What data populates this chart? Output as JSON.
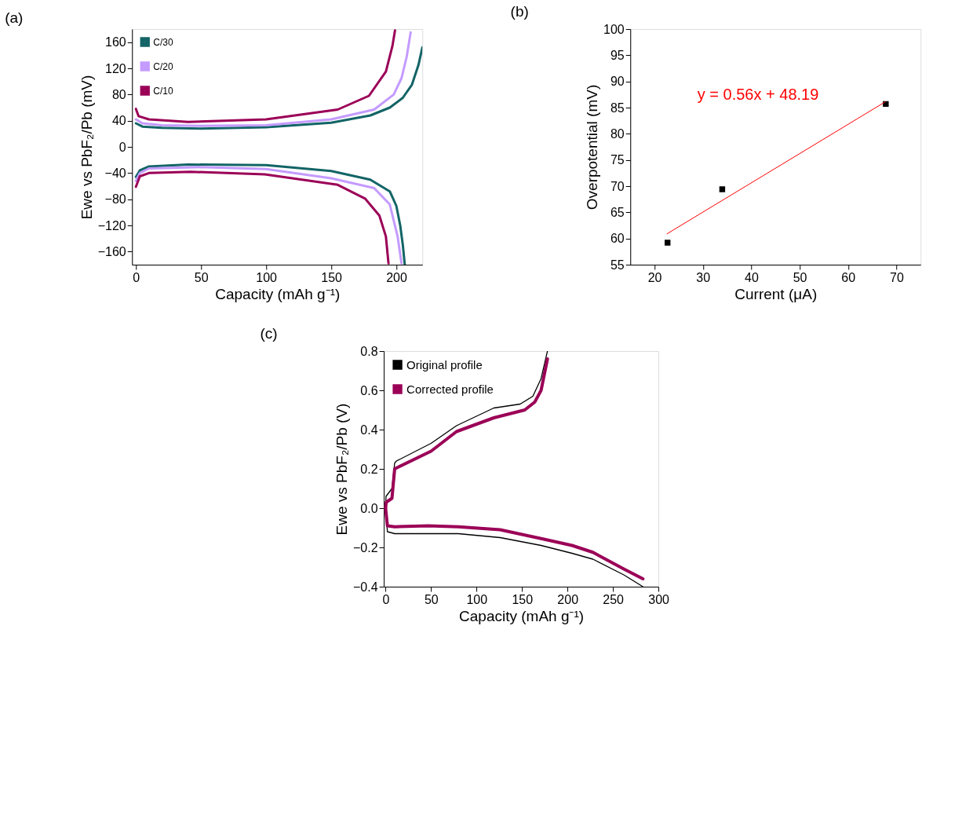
{
  "chart_data": [
    {
      "type": "line",
      "title": "(a)",
      "xlabel": "Capacity (mAh g⁻¹)",
      "ylabel": "Ewe vs PbF₂/Pb (mV)",
      "xlim": [
        -3,
        220
      ],
      "ylim": [
        -180,
        180
      ],
      "xticks": [
        0,
        50,
        100,
        150,
        200
      ],
      "yticks": [
        -160,
        -120,
        -80,
        -40,
        0,
        40,
        80,
        120,
        160
      ],
      "grid": false,
      "legend": "top left",
      "series": [
        {
          "name": "C/30",
          "color": "#136466",
          "x": [
            0,
            5,
            20,
            50,
            100,
            150,
            180,
            195,
            205,
            212,
            217,
            220,
            null,
            0,
            3,
            10,
            40,
            100,
            150,
            180,
            195,
            200,
            203,
            205,
            206.5
          ],
          "values": [
            36,
            31,
            29,
            28,
            30,
            37,
            48,
            60,
            75,
            95,
            125,
            152,
            null,
            -46,
            -36,
            -30,
            -27,
            -28,
            -37,
            -50,
            -68,
            -90,
            -120,
            -150,
            -180
          ]
        },
        {
          "name": "C/20",
          "color": "#c49bff",
          "x": [
            0,
            5,
            20,
            50,
            100,
            150,
            183,
            198,
            204,
            208,
            211,
            null,
            0,
            3,
            10,
            50,
            100,
            150,
            183,
            195,
            201,
            204
          ],
          "values": [
            42,
            36,
            33,
            32,
            33,
            42,
            57,
            80,
            105,
            138,
            175,
            null,
            -52,
            -40,
            -33,
            -31,
            -34,
            -48,
            -63,
            -88,
            -137,
            -178
          ]
        },
        {
          "name": "C/10",
          "color": "#9b0057",
          "x": [
            0,
            2,
            10,
            40,
            100,
            155,
            179,
            192,
            197,
            199,
            null,
            0,
            3,
            10,
            42,
            99,
            155,
            176,
            187,
            192,
            194
          ],
          "values": [
            58,
            47,
            42,
            38,
            42,
            57,
            78,
            115,
            154,
            178,
            null,
            -61,
            -45,
            -40,
            -38,
            -42,
            -58,
            -79,
            -105,
            -137,
            -178
          ]
        }
      ]
    },
    {
      "type": "scatter",
      "title": "(b)",
      "xlabel": "Current (μA)",
      "ylabel": "Overpotential (mV)",
      "xlim": [
        15,
        75
      ],
      "ylim": [
        55,
        100
      ],
      "xticks": [
        20,
        30,
        40,
        50,
        60,
        70
      ],
      "yticks": [
        55,
        60,
        65,
        70,
        75,
        80,
        85,
        90,
        95,
        100
      ],
      "grid": false,
      "legend": false,
      "marker": "square",
      "series": [
        {
          "type": "scatter",
          "color": "#000000",
          "x": [
            22.7,
            34,
            67.8
          ],
          "values": [
            59.2,
            69.4,
            85.7
          ]
        },
        {
          "type": "line",
          "marker": "none",
          "color": "#ff0000",
          "x": [
            22.6,
            67.7
          ],
          "values": [
            60.9,
            86.1
          ]
        }
      ],
      "annotations": [
        "y = 0.56x + 48.19"
      ]
    },
    {
      "type": "line",
      "title": "(c)",
      "xlabel": "Capacity (mAh g⁻¹)",
      "ylabel": "Ewe vs PbF₂/Pb (V)",
      "xlim": [
        -2,
        300
      ],
      "ylim": [
        -0.4,
        0.8
      ],
      "xticks": [
        0,
        50,
        100,
        150,
        200,
        250,
        300
      ],
      "yticks": [
        -0.4,
        -0.2,
        {
          "value": 0,
          "label": "0.0"
        },
        0.2,
        0.4,
        0.6,
        0.8
      ],
      "grid": false,
      "legend": "top left",
      "series": [
        {
          "name": "Original profile",
          "color": "#000000",
          "x": [
            0,
            0.5,
            7,
            10,
            12,
            50,
            78,
            119,
            148,
            162,
            171,
            178,
            null,
            0,
            2,
            10,
            50,
            80,
            126,
            171,
            205,
            228,
            262,
            283
          ],
          "values": [
            0.0,
            0.06,
            0.1,
            0.23,
            0.24,
            0.33,
            0.42,
            0.51,
            0.53,
            0.57,
            0.66,
            0.8,
            null,
            0.0,
            -0.12,
            -0.13,
            -0.13,
            -0.13,
            -0.15,
            -0.19,
            -0.23,
            -0.26,
            -0.34,
            -0.4
          ]
        },
        {
          "name": "Corrected profile",
          "color": "#9b0057",
          "x": [
            0,
            0.7,
            7,
            9,
            10,
            50,
            78,
            119,
            153,
            164,
            171,
            178,
            null,
            0,
            2,
            10,
            47,
            80,
            126,
            171,
            205,
            228,
            262,
            283
          ],
          "values": [
            0.0,
            0.03,
            0.05,
            0.15,
            0.2,
            0.29,
            0.39,
            0.46,
            0.5,
            0.54,
            0.6,
            0.76,
            null,
            0.0,
            -0.09,
            -0.095,
            -0.09,
            -0.095,
            -0.11,
            -0.155,
            -0.19,
            -0.225,
            -0.31,
            -0.36
          ]
        }
      ]
    }
  ]
}
